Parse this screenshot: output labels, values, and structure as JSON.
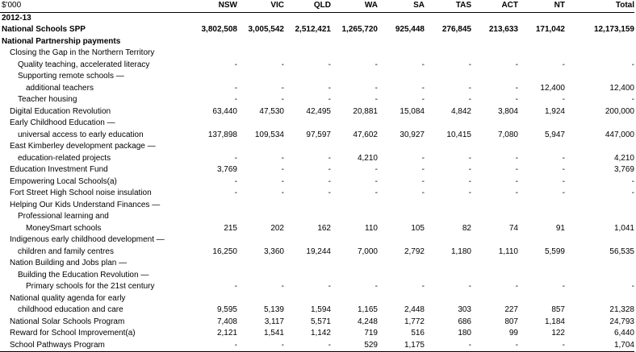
{
  "columns": [
    "$'000",
    "NSW",
    "VIC",
    "QLD",
    "WA",
    "SA",
    "TAS",
    "ACT",
    "NT",
    "Total"
  ],
  "rows": [
    {
      "label": "2012-13",
      "indent": 0,
      "bold": true,
      "values": [
        "",
        "",
        "",
        "",
        "",
        "",
        "",
        "",
        ""
      ]
    },
    {
      "label": "National Schools SPP",
      "indent": 0,
      "bold": true,
      "values": [
        "3,802,508",
        "3,005,542",
        "2,512,421",
        "1,265,720",
        "925,448",
        "276,845",
        "213,633",
        "171,042",
        "12,173,159"
      ]
    },
    {
      "label": "National Partnership payments",
      "indent": 0,
      "bold": true,
      "values": [
        "",
        "",
        "",
        "",
        "",
        "",
        "",
        "",
        ""
      ]
    },
    {
      "label": "Closing the Gap in the Northern Territory",
      "indent": 1,
      "bold": false,
      "values": [
        "",
        "",
        "",
        "",
        "",
        "",
        "",
        "",
        ""
      ]
    },
    {
      "label": "Quality teaching, accelerated literacy",
      "indent": 2,
      "bold": false,
      "values": [
        "-",
        "-",
        "-",
        "-",
        "-",
        "-",
        "-",
        "-",
        "-"
      ]
    },
    {
      "label": "Supporting remote schools —",
      "indent": 2,
      "bold": false,
      "values": [
        "",
        "",
        "",
        "",
        "",
        "",
        "",
        "",
        ""
      ]
    },
    {
      "label": "additional teachers",
      "indent": 3,
      "bold": false,
      "values": [
        "-",
        "-",
        "-",
        "-",
        "-",
        "-",
        "-",
        "12,400",
        "12,400"
      ]
    },
    {
      "label": "Teacher housing",
      "indent": 2,
      "bold": false,
      "values": [
        "-",
        "-",
        "-",
        "-",
        "-",
        "-",
        "-",
        "-",
        "-"
      ]
    },
    {
      "label": "Digital Education Revolution",
      "indent": 1,
      "bold": false,
      "values": [
        "63,440",
        "47,530",
        "42,495",
        "20,881",
        "15,084",
        "4,842",
        "3,804",
        "1,924",
        "200,000"
      ]
    },
    {
      "label": "Early Childhood Education —",
      "indent": 1,
      "bold": false,
      "values": [
        "",
        "",
        "",
        "",
        "",
        "",
        "",
        "",
        ""
      ]
    },
    {
      "label": "universal access to early education",
      "indent": 2,
      "bold": false,
      "values": [
        "137,898",
        "109,534",
        "97,597",
        "47,602",
        "30,927",
        "10,415",
        "7,080",
        "5,947",
        "447,000"
      ]
    },
    {
      "label": "East Kimberley development package —",
      "indent": 1,
      "bold": false,
      "values": [
        "",
        "",
        "",
        "",
        "",
        "",
        "",
        "",
        ""
      ]
    },
    {
      "label": "education-related projects",
      "indent": 2,
      "bold": false,
      "values": [
        "-",
        "-",
        "-",
        "4,210",
        "-",
        "-",
        "-",
        "-",
        "4,210"
      ]
    },
    {
      "label": "Education Investment Fund",
      "indent": 1,
      "bold": false,
      "values": [
        "3,769",
        "-",
        "-",
        "-",
        "-",
        "-",
        "-",
        "-",
        "3,769"
      ]
    },
    {
      "label": "Empowering Local Schools(a)",
      "indent": 1,
      "bold": false,
      "values": [
        "-",
        "-",
        "-",
        "-",
        "-",
        "-",
        "-",
        "-",
        "-"
      ]
    },
    {
      "label": "Fort Street High School noise insulation",
      "indent": 1,
      "bold": false,
      "values": [
        "-",
        "-",
        "-",
        "-",
        "-",
        "-",
        "-",
        "-",
        "-"
      ]
    },
    {
      "label": "Helping Our Kids Understand Finances —",
      "indent": 1,
      "bold": false,
      "values": [
        "",
        "",
        "",
        "",
        "",
        "",
        "",
        "",
        ""
      ]
    },
    {
      "label": "Professional learning and",
      "indent": 2,
      "bold": false,
      "values": [
        "",
        "",
        "",
        "",
        "",
        "",
        "",
        "",
        ""
      ]
    },
    {
      "label": "MoneySmart schools",
      "indent": 3,
      "bold": false,
      "values": [
        "215",
        "202",
        "162",
        "110",
        "105",
        "82",
        "74",
        "91",
        "1,041"
      ]
    },
    {
      "label": "Indigenous early childhood development —",
      "indent": 1,
      "bold": false,
      "values": [
        "",
        "",
        "",
        "",
        "",
        "",
        "",
        "",
        ""
      ]
    },
    {
      "label": "children and family centres",
      "indent": 2,
      "bold": false,
      "values": [
        "16,250",
        "3,360",
        "19,244",
        "7,000",
        "2,792",
        "1,180",
        "1,110",
        "5,599",
        "56,535"
      ]
    },
    {
      "label": "Nation Building and Jobs plan —",
      "indent": 1,
      "bold": false,
      "values": [
        "",
        "",
        "",
        "",
        "",
        "",
        "",
        "",
        ""
      ]
    },
    {
      "label": "Building the Education Revolution —",
      "indent": 2,
      "bold": false,
      "values": [
        "",
        "",
        "",
        "",
        "",
        "",
        "",
        "",
        ""
      ]
    },
    {
      "label": "Primary schools for the 21st century",
      "indent": 3,
      "bold": false,
      "values": [
        "-",
        "-",
        "-",
        "-",
        "-",
        "-",
        "-",
        "-",
        "-"
      ]
    },
    {
      "label": "National quality agenda for early",
      "indent": 1,
      "bold": false,
      "values": [
        "",
        "",
        "",
        "",
        "",
        "",
        "",
        "",
        ""
      ]
    },
    {
      "label": "childhood education and care",
      "indent": 2,
      "bold": false,
      "values": [
        "9,595",
        "5,139",
        "1,594",
        "1,165",
        "2,448",
        "303",
        "227",
        "857",
        "21,328"
      ]
    },
    {
      "label": "National Solar Schools Program",
      "indent": 1,
      "bold": false,
      "values": [
        "7,408",
        "3,117",
        "5,571",
        "4,248",
        "1,772",
        "686",
        "807",
        "1,184",
        "24,793"
      ]
    },
    {
      "label": "Reward for School Improvement(a)",
      "indent": 1,
      "bold": false,
      "values": [
        "2,121",
        "1,541",
        "1,142",
        "719",
        "516",
        "180",
        "99",
        "122",
        "6,440"
      ]
    },
    {
      "label": "School Pathways Program",
      "indent": 1,
      "bold": false,
      "values": [
        "-",
        "-",
        "-",
        "529",
        "1,175",
        "-",
        "-",
        "-",
        "1,704"
      ]
    }
  ]
}
